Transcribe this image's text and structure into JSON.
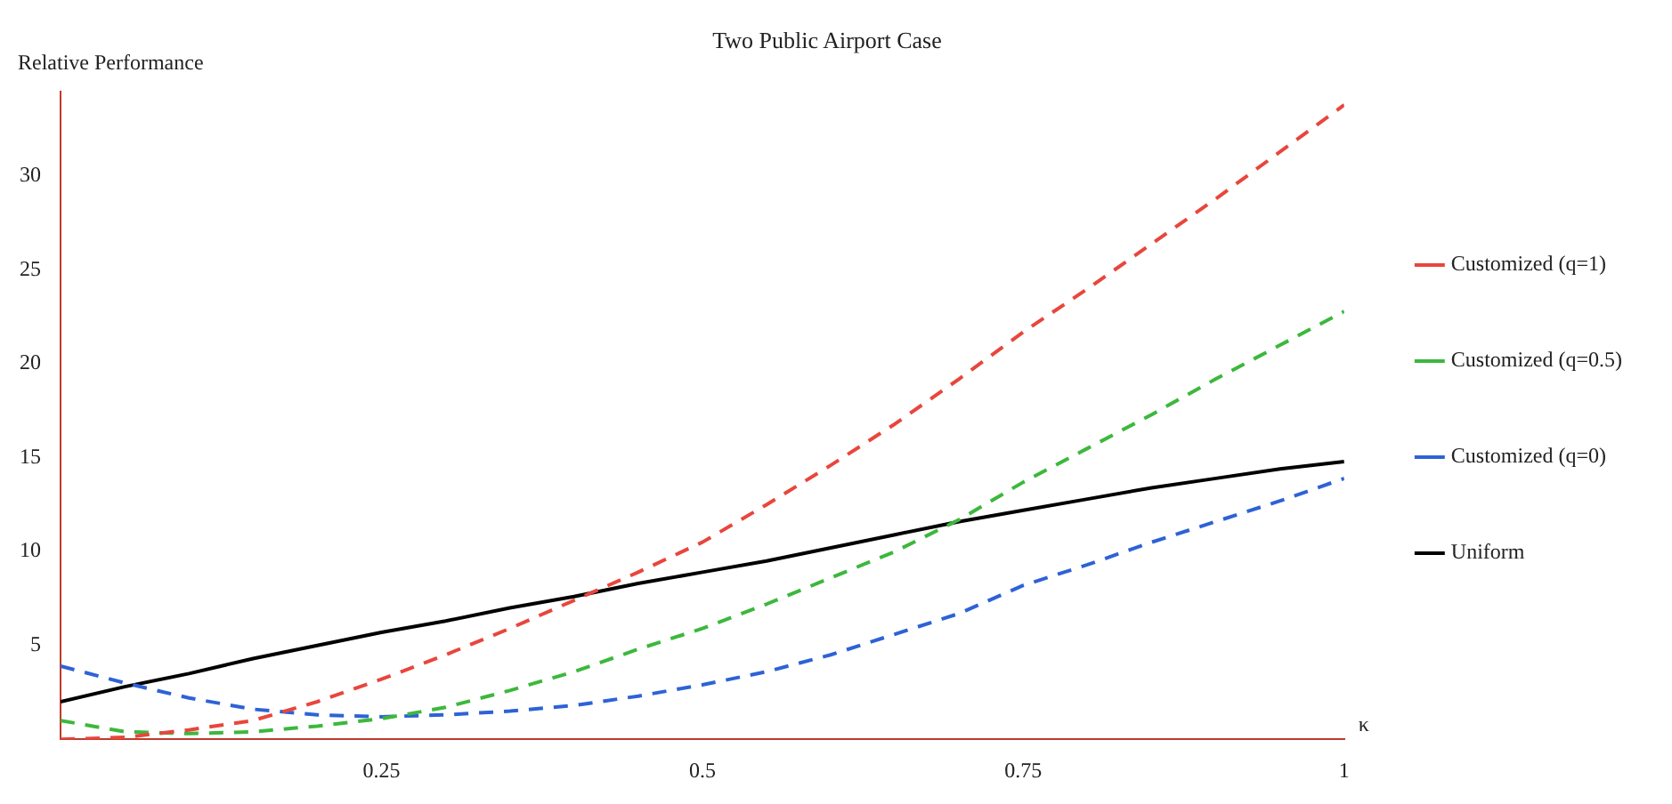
{
  "chart_data": {
    "type": "line",
    "title": "Two Public Airport Case",
    "xlabel": "κ",
    "ylabel": "Relative Performance",
    "x": [
      0,
      0.05,
      0.1,
      0.15,
      0.2,
      0.25,
      0.3,
      0.35,
      0.4,
      0.45,
      0.5,
      0.55,
      0.6,
      0.65,
      0.7,
      0.75,
      0.8,
      0.85,
      0.9,
      0.95,
      1
    ],
    "series": [
      {
        "name": "Customized (q=1)",
        "color": "#e8463c",
        "line_style": "dashed",
        "values": [
          0,
          0.1,
          0.5,
          1.0,
          2.0,
          3.2,
          4.5,
          5.9,
          7.4,
          8.9,
          10.5,
          12.5,
          14.6,
          16.8,
          19.2,
          21.7,
          24.0,
          26.4,
          28.8,
          31.3,
          33.8
        ]
      },
      {
        "name": "Customized (q=0.5)",
        "color": "#3cb83c",
        "line_style": "dashed",
        "values": [
          1.0,
          0.4,
          0.3,
          0.4,
          0.7,
          1.1,
          1.7,
          2.6,
          3.6,
          4.8,
          5.9,
          7.2,
          8.6,
          10.0,
          11.7,
          13.7,
          15.5,
          17.3,
          19.2,
          21.0,
          22.8
        ]
      },
      {
        "name": "Customized (q=0)",
        "color": "#2e62d6",
        "line_style": "dashed",
        "values": [
          3.9,
          3.0,
          2.2,
          1.6,
          1.3,
          1.2,
          1.3,
          1.5,
          1.8,
          2.3,
          2.9,
          3.6,
          4.5,
          5.6,
          6.7,
          8.2,
          9.3,
          10.5,
          11.6,
          12.7,
          13.9
        ]
      },
      {
        "name": "Uniform",
        "color": "#000000",
        "line_style": "solid",
        "values": [
          2.0,
          2.8,
          3.5,
          4.3,
          5.0,
          5.7,
          6.3,
          7.0,
          7.6,
          8.3,
          8.9,
          9.5,
          10.2,
          10.9,
          11.6,
          12.2,
          12.8,
          13.4,
          13.9,
          14.4,
          14.8
        ]
      }
    ],
    "xlim": [
      0,
      1
    ],
    "xticks": [
      0.25,
      0.5,
      0.75,
      1
    ],
    "ylim": [
      0,
      34.5
    ],
    "yticks": [
      5,
      10,
      15,
      20,
      25,
      30
    ],
    "grid": false,
    "legend": "right",
    "marker": "none"
  }
}
